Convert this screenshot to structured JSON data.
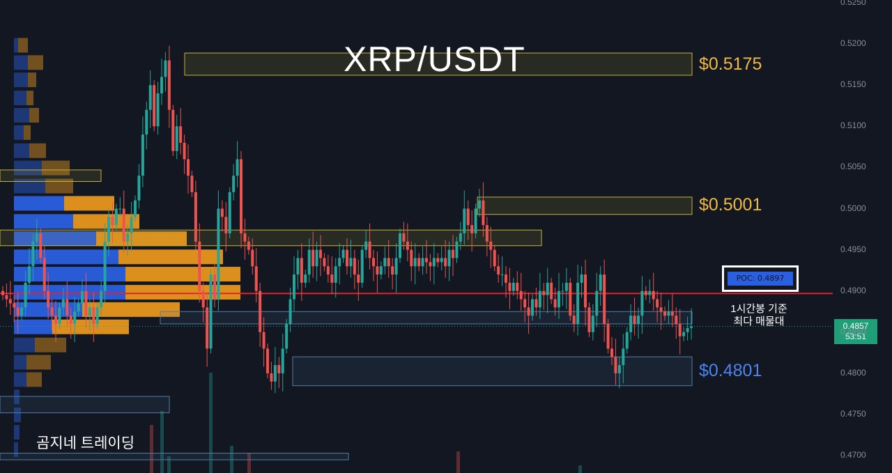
{
  "title": "XRP/USDT",
  "brand": "곰지네 트레이딩",
  "annotation": {
    "poc_label": "POC: 0.4897",
    "note_line1": "1시간봉 기준",
    "note_line2": "최다 매물대"
  },
  "current_price": {
    "price": "0.4857",
    "countdown": "53:51"
  },
  "colors": {
    "background": "#131722",
    "bull": "#26a69a",
    "bear": "#ef5350",
    "supply_zone": "#c8b23a",
    "demand_zone": "#4f7fa8",
    "poc_line": "#e0232e",
    "volume_profile_blue": "#2a5fe0",
    "volume_profile_orange": "#e8961e",
    "label_gold": "#f0b942",
    "label_blue": "#4b84f0"
  },
  "chart_data": {
    "type": "candlestick",
    "title": "XRP/USDT",
    "ylim": [
      0.47,
      0.525
    ],
    "y_ticks": [
      "0.5250",
      "0.5200",
      "0.5150",
      "0.5100",
      "0.5050",
      "0.5000",
      "0.4950",
      "0.4900",
      "0.4850",
      "0.4800",
      "0.4750",
      "0.4700"
    ],
    "grid": false,
    "poc": 0.4897,
    "current_price": 0.4857,
    "zones": [
      {
        "type": "supply",
        "label": "$0.5175",
        "y_low": 0.5162,
        "y_high": 0.5189
      },
      {
        "type": "supply",
        "label": "$0.5001",
        "y_low": 0.4993,
        "y_high": 0.5014
      },
      {
        "type": "supply",
        "label": "",
        "y_low": 0.4955,
        "y_high": 0.4974
      },
      {
        "type": "demand",
        "label": "",
        "y_low": 0.486,
        "y_high": 0.4875
      },
      {
        "type": "demand",
        "label": "$0.4801",
        "y_low": 0.4785,
        "y_high": 0.482
      }
    ],
    "closes": [
      0.4895,
      0.489,
      0.4885,
      0.488,
      0.487,
      0.488,
      0.491,
      0.493,
      0.496,
      0.497,
      0.494,
      0.49,
      0.488,
      0.487,
      0.486,
      0.488,
      0.489,
      0.487,
      0.486,
      0.4875,
      0.4885,
      0.49,
      0.487,
      0.488,
      0.486,
      0.488,
      0.49,
      0.496,
      0.499,
      0.498,
      0.5,
      0.5,
      0.496,
      0.497,
      0.499,
      0.501,
      0.504,
      0.509,
      0.512,
      0.515,
      0.51,
      0.514,
      0.516,
      0.518,
      0.512,
      0.507,
      0.51,
      0.508,
      0.506,
      0.504,
      0.502,
      0.496,
      0.49,
      0.488,
      0.483,
      0.492,
      0.489,
      0.5,
      0.499,
      0.497,
      0.502,
      0.504,
      0.506,
      0.497,
      0.496,
      0.495,
      0.493,
      0.49,
      0.485,
      0.483,
      0.48,
      0.479,
      0.481,
      0.48,
      0.483,
      0.486,
      0.489,
      0.492,
      0.494,
      0.491,
      0.492,
      0.495,
      0.493,
      0.495,
      0.494,
      0.493,
      0.492,
      0.491,
      0.493,
      0.494,
      0.495,
      0.493,
      0.494,
      0.492,
      0.491,
      0.495,
      0.496,
      0.494,
      0.493,
      0.492,
      0.493,
      0.494,
      0.493,
      0.492,
      0.494,
      0.497,
      0.496,
      0.495,
      0.493,
      0.494,
      0.493,
      0.494,
      0.4935,
      0.493,
      0.494,
      0.4935,
      0.494,
      0.493,
      0.495,
      0.494,
      0.496,
      0.497,
      0.5,
      0.498,
      0.497,
      0.5,
      0.501,
      0.498,
      0.496,
      0.495,
      0.493,
      0.492,
      0.492,
      0.491,
      0.49,
      0.491,
      0.49,
      0.489,
      0.488,
      0.487,
      0.489,
      0.488,
      0.49,
      0.4895,
      0.491,
      0.489,
      0.488,
      0.49,
      0.49,
      0.491,
      0.487,
      0.486,
      0.491,
      0.492,
      0.488,
      0.485,
      0.487,
      0.49,
      0.492,
      0.486,
      0.483,
      0.482,
      0.48,
      0.481,
      0.483,
      0.485,
      0.487,
      0.486,
      0.487,
      0.49,
      0.4895,
      0.49,
      0.489,
      0.488,
      0.4875,
      0.487,
      0.4875,
      0.487,
      0.486,
      0.4845,
      0.485,
      0.4855,
      0.4857
    ]
  }
}
